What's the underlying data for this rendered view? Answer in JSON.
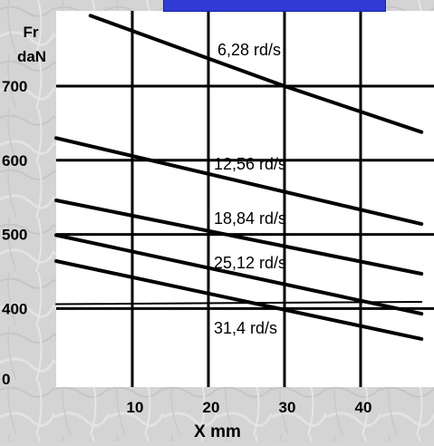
{
  "chart_data": {
    "type": "line",
    "title": "",
    "xlabel": "X mm",
    "ylabel_lines": [
      "Fr",
      "daN"
    ],
    "x_ticks": [
      10,
      20,
      30,
      40
    ],
    "y_ticks": [
      {
        "label": "700",
        "value": 700
      },
      {
        "label": "600",
        "value": 600
      },
      {
        "label": "500",
        "value": 500
      },
      {
        "label": "400",
        "value": 400
      },
      {
        "label": "0",
        "value": 0
      }
    ],
    "grid": true,
    "series": [
      {
        "name": "6,28 rd/s",
        "points": [
          [
            4.5,
            795
          ],
          [
            30,
            700
          ],
          [
            48,
            638
          ]
        ]
      },
      {
        "name": "12,56 rd/s",
        "points": [
          [
            0,
            630
          ],
          [
            48,
            514
          ]
        ]
      },
      {
        "name": "18,84 rd/s",
        "points": [
          [
            0,
            546
          ],
          [
            48,
            447
          ]
        ]
      },
      {
        "name": "25,12 rd/s",
        "points": [
          [
            0,
            499
          ],
          [
            48,
            393
          ]
        ]
      },
      {
        "name": "31,4 rd/s",
        "points": [
          [
            0,
            464
          ],
          [
            48,
            359
          ]
        ]
      },
      {
        "name": "",
        "points": [
          [
            0,
            406
          ],
          [
            48,
            409
          ]
        ]
      }
    ],
    "series_label_text": [
      "6,28 rd/s",
      "12,56 rd/s",
      "18,84 rd/s",
      "25,12 rd/s",
      "31,4 rd/s"
    ]
  },
  "colors": {
    "background": "#d6d6d6",
    "plot_area": "#ffffff",
    "line": "#000000",
    "title_bar": "#2f3bd4"
  }
}
